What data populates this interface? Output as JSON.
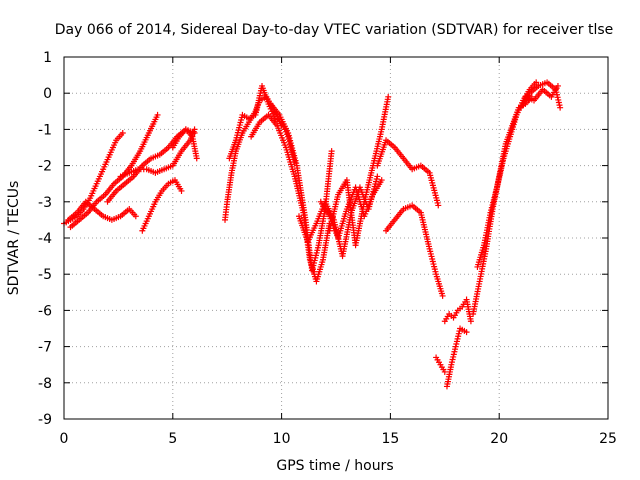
{
  "chart_data": {
    "type": "scatter",
    "title": "Day 066 of 2014, Sidereal Day-to-day VTEC variation (SDTVAR) for receiver tlse",
    "xlabel": "GPS time / hours",
    "ylabel": "SDTVAR / TECUs",
    "xlim": [
      0,
      25
    ],
    "ylim": [
      -9,
      1
    ],
    "xticks": [
      0,
      5,
      10,
      15,
      20,
      25
    ],
    "yticks": [
      1,
      0,
      -1,
      -2,
      -3,
      -4,
      -5,
      -6,
      -7,
      -8,
      -9
    ],
    "grid": true,
    "marker": "+",
    "color": "#ff0000",
    "series": [
      {
        "name": "s1",
        "x": [
          0.0,
          0.3,
          0.6,
          0.9,
          1.2,
          1.5,
          1.8,
          2.1,
          2.4,
          2.7
        ],
        "y": [
          -3.6,
          -3.5,
          -3.4,
          -3.2,
          -2.9,
          -2.5,
          -2.1,
          -1.7,
          -1.3,
          -1.1
        ]
      },
      {
        "name": "s2",
        "x": [
          0.3,
          0.7,
          1.1,
          1.5,
          1.9,
          2.3,
          2.7,
          3.1,
          3.5,
          3.9,
          4.3
        ],
        "y": [
          -3.7,
          -3.5,
          -3.3,
          -3.0,
          -2.8,
          -2.5,
          -2.3,
          -2.0,
          -1.6,
          -1.1,
          -0.6
        ]
      },
      {
        "name": "s3",
        "x": [
          0.2,
          0.6,
          1.0,
          1.4,
          1.8,
          2.2,
          2.6,
          3.0,
          3.3
        ],
        "y": [
          -3.5,
          -3.3,
          -3.0,
          -3.2,
          -3.4,
          -3.5,
          -3.4,
          -3.2,
          -3.4
        ]
      },
      {
        "name": "s4",
        "x": [
          2.0,
          2.4,
          2.8,
          3.2,
          3.6,
          4.0,
          4.4,
          4.8,
          5.2,
          5.6,
          6.0
        ],
        "y": [
          -3.0,
          -2.7,
          -2.5,
          -2.3,
          -2.0,
          -1.8,
          -1.7,
          -1.5,
          -1.2,
          -1.0,
          -1.1
        ]
      },
      {
        "name": "s5",
        "x": [
          2.6,
          3.0,
          3.4,
          3.8,
          4.2,
          4.6,
          5.0,
          5.4,
          5.8,
          6.0
        ],
        "y": [
          -2.3,
          -2.2,
          -2.1,
          -2.1,
          -2.2,
          -2.1,
          -2.0,
          -1.6,
          -1.3,
          -1.0
        ]
      },
      {
        "name": "s6",
        "x": [
          3.6,
          3.9,
          4.2,
          4.5,
          4.8,
          5.1,
          5.4
        ],
        "y": [
          -3.8,
          -3.4,
          -3.0,
          -2.7,
          -2.5,
          -2.4,
          -2.7
        ]
      },
      {
        "name": "s7",
        "x": [
          5.0,
          5.3,
          5.6,
          5.9,
          6.1
        ],
        "y": [
          -1.5,
          -1.2,
          -1.0,
          -1.2,
          -1.8
        ]
      },
      {
        "name": "s8",
        "x": [
          7.4,
          7.5,
          7.7,
          7.9,
          8.2,
          8.5,
          8.8,
          9.0,
          9.3,
          9.6,
          10.0
        ],
        "y": [
          -3.5,
          -3.0,
          -2.2,
          -1.6,
          -1.1,
          -0.8,
          -0.5,
          -0.2,
          -0.1,
          -0.4,
          -0.9
        ]
      },
      {
        "name": "s9",
        "x": [
          7.6,
          7.9,
          8.2,
          8.5,
          8.8,
          9.1,
          9.4,
          9.7,
          10.0,
          10.3,
          10.6
        ],
        "y": [
          -1.8,
          -1.3,
          -0.6,
          -0.7,
          -0.6,
          0.2,
          -0.3,
          -0.7,
          -0.8,
          -1.2,
          -1.9
        ]
      },
      {
        "name": "s10",
        "x": [
          8.6,
          9.0,
          9.4,
          9.8,
          10.2,
          10.6,
          11.0,
          11.3,
          11.6,
          11.9,
          12.2
        ],
        "y": [
          -1.2,
          -0.8,
          -0.6,
          -0.9,
          -1.5,
          -2.3,
          -3.3,
          -4.6,
          -5.2,
          -4.6,
          -3.6
        ]
      },
      {
        "name": "s11",
        "x": [
          9.5,
          9.9,
          10.3,
          10.7,
          11.1,
          11.4,
          11.7,
          12.0,
          12.3
        ],
        "y": [
          -0.3,
          -0.6,
          -1.1,
          -2.0,
          -3.5,
          -4.9,
          -4.2,
          -3.2,
          -1.6
        ]
      },
      {
        "name": "s12",
        "x": [
          10.8,
          11.2,
          11.6,
          12.0,
          12.4,
          12.8,
          13.2,
          13.6,
          14.0,
          14.4
        ],
        "y": [
          -3.4,
          -4.1,
          -3.6,
          -3.0,
          -3.5,
          -4.5,
          -3.3,
          -2.6,
          -3.2,
          -2.3
        ]
      },
      {
        "name": "s13",
        "x": [
          12.2,
          12.6,
          13.0,
          13.4,
          13.8,
          14.2,
          14.6,
          14.9
        ],
        "y": [
          -3.8,
          -2.8,
          -2.4,
          -4.2,
          -3.0,
          -2.0,
          -1.0,
          -0.1
        ]
      },
      {
        "name": "s14",
        "x": [
          11.8,
          12.2,
          12.6,
          13.0,
          13.4,
          13.8,
          14.2,
          14.6
        ],
        "y": [
          -3.0,
          -3.4,
          -4.0,
          -3.2,
          -2.6,
          -3.4,
          -2.8,
          -2.4
        ]
      },
      {
        "name": "s15",
        "x": [
          14.8,
          15.2,
          15.6,
          16.0,
          16.4,
          16.8,
          17.1,
          17.4
        ],
        "y": [
          -3.8,
          -3.5,
          -3.2,
          -3.1,
          -3.3,
          -4.3,
          -5.0,
          -5.6
        ]
      },
      {
        "name": "s16",
        "x": [
          14.4,
          14.8,
          15.2,
          15.6,
          16.0,
          16.4,
          16.8,
          17.2
        ],
        "y": [
          -2.0,
          -1.3,
          -1.5,
          -1.8,
          -2.1,
          -2.0,
          -2.2,
          -3.1
        ]
      },
      {
        "name": "s17",
        "x": [
          17.1,
          17.3,
          17.5
        ],
        "y": [
          -7.3,
          -7.5,
          -7.7
        ]
      },
      {
        "name": "s18",
        "x": [
          17.5,
          17.7,
          17.9,
          18.1,
          18.3,
          18.5,
          18.7
        ],
        "y": [
          -6.3,
          -6.1,
          -6.2,
          -6.0,
          -5.9,
          -5.7,
          -6.3
        ]
      },
      {
        "name": "s19",
        "x": [
          17.6,
          17.8,
          18.0,
          18.2,
          18.5
        ],
        "y": [
          -8.1,
          -7.5,
          -7.0,
          -6.5,
          -6.6
        ]
      },
      {
        "name": "s20",
        "x": [
          18.8,
          19.1,
          19.4,
          19.7,
          20.0,
          20.3,
          20.6,
          20.9,
          21.2,
          21.5
        ],
        "y": [
          -6.1,
          -5.2,
          -4.3,
          -3.2,
          -2.3,
          -1.4,
          -0.9,
          -0.4,
          -0.3,
          -0.1
        ]
      },
      {
        "name": "s21",
        "x": [
          19.0,
          19.3,
          19.6,
          19.9,
          20.2,
          20.5,
          20.8,
          21.1,
          21.4,
          21.7
        ],
        "y": [
          -4.8,
          -4.2,
          -3.3,
          -2.6,
          -1.8,
          -1.2,
          -0.6,
          -0.2,
          0.1,
          0.3
        ]
      },
      {
        "name": "s22",
        "x": [
          21.0,
          21.4,
          21.8,
          22.2,
          22.6,
          22.8
        ],
        "y": [
          -0.4,
          0.0,
          0.2,
          0.3,
          0.1,
          -0.4
        ]
      },
      {
        "name": "s23",
        "x": [
          21.2,
          21.6,
          22.0,
          22.4,
          22.7
        ],
        "y": [
          -0.1,
          -0.2,
          0.1,
          -0.1,
          0.2
        ]
      }
    ]
  }
}
